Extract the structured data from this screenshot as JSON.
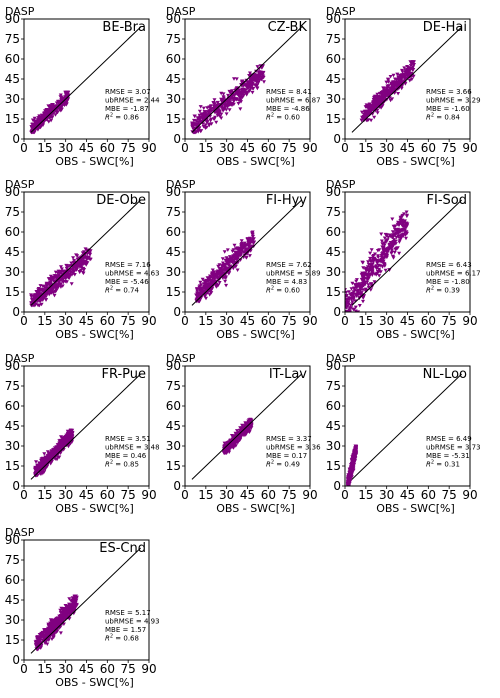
{
  "figure": {
    "marker_color": "#800080",
    "line_color": "#000000"
  },
  "chart_data": [
    {
      "type": "scatter",
      "title": "BE-Bra",
      "ylabel": "DASP",
      "xlabel": "OBS - SWC[%]",
      "xlim": [
        0,
        90
      ],
      "ylim": [
        0,
        90
      ],
      "xticks": [
        "0",
        "15",
        "30",
        "45",
        "60",
        "75",
        "90"
      ],
      "yticks": [
        "0",
        "15",
        "30",
        "45",
        "60",
        "75",
        "90"
      ],
      "reference_line": "1:1",
      "cloud": {
        "x_range": [
          5,
          32
        ],
        "y_range": [
          5,
          35
        ]
      },
      "stats": [
        "RMSE = 3.07",
        "ubRMSE = 2.44",
        "MBE = -1.87",
        "R^2 = 0.86"
      ]
    },
    {
      "type": "scatter",
      "title": "CZ-BK",
      "ylabel": "DASP",
      "xlabel": "OBS - SWC[%]",
      "xlim": [
        0,
        90
      ],
      "ylim": [
        0,
        90
      ],
      "xticks": [
        "0",
        "15",
        "30",
        "45",
        "60",
        "75",
        "90"
      ],
      "yticks": [
        "0",
        "15",
        "30",
        "45",
        "60",
        "75",
        "90"
      ],
      "reference_line": "1:1",
      "cloud": {
        "x_range": [
          5,
          57
        ],
        "y_range": [
          5,
          55
        ]
      },
      "stats": [
        "RMSE = 8.41",
        "ubRMSE = 6.87",
        "MBE = -4.86",
        "R^2 = 0.60"
      ]
    },
    {
      "type": "scatter",
      "title": "DE-Hai",
      "ylabel": "DASP",
      "xlabel": "OBS - SWC[%]",
      "xlim": [
        0,
        90
      ],
      "ylim": [
        0,
        90
      ],
      "xticks": [
        "0",
        "15",
        "30",
        "45",
        "60",
        "75",
        "90"
      ],
      "yticks": [
        "0",
        "15",
        "30",
        "45",
        "60",
        "75",
        "90"
      ],
      "reference_line": "1:1",
      "cloud": {
        "x_range": [
          12,
          50
        ],
        "y_range": [
          14,
          58
        ]
      },
      "stats": [
        "RMSE = 3.66",
        "ubRMSE = 3.29",
        "MBE = -1.60",
        "R^2 = 0.84"
      ]
    },
    {
      "type": "scatter",
      "title": "DE-Obe",
      "ylabel": "DASP",
      "xlabel": "OBS - SWC[%]",
      "xlim": [
        0,
        90
      ],
      "ylim": [
        0,
        90
      ],
      "xticks": [
        "0",
        "15",
        "30",
        "45",
        "60",
        "75",
        "90"
      ],
      "yticks": [
        "0",
        "15",
        "30",
        "45",
        "60",
        "75",
        "90"
      ],
      "reference_line": "1:1",
      "cloud": {
        "x_range": [
          5,
          48
        ],
        "y_range": [
          5,
          48
        ]
      },
      "stats": [
        "RMSE = 7.16",
        "ubRMSE = 4.63",
        "MBE = -5.46",
        "R^2 = 0.74"
      ]
    },
    {
      "type": "scatter",
      "title": "FI-Hyy",
      "ylabel": "DASP",
      "xlabel": "OBS - SWC[%]",
      "xlim": [
        0,
        90
      ],
      "ylim": [
        0,
        90
      ],
      "xticks": [
        "0",
        "15",
        "30",
        "45",
        "60",
        "75",
        "90"
      ],
      "yticks": [
        "0",
        "15",
        "30",
        "45",
        "60",
        "75",
        "90"
      ],
      "reference_line": "1:1",
      "cloud": {
        "x_range": [
          8,
          50
        ],
        "y_range": [
          8,
          60
        ]
      },
      "stats": [
        "RMSE = 7.62",
        "ubRMSE = 5.89",
        "MBE = 4.83",
        "R^2 = 0.60"
      ]
    },
    {
      "type": "scatter",
      "title": "FI-Sod",
      "ylabel": "DASP",
      "xlabel": "OBS - SWC[%]",
      "xlim": [
        0,
        90
      ],
      "ylim": [
        0,
        90
      ],
      "xticks": [
        "0",
        "15",
        "30",
        "45",
        "60",
        "75",
        "90"
      ],
      "yticks": [
        "0",
        "15",
        "30",
        "45",
        "60",
        "75",
        "90"
      ],
      "reference_line": "1:1",
      "cloud": {
        "x_range": [
          0,
          45
        ],
        "y_range": [
          0,
          75
        ]
      },
      "stats": [
        "RMSE = 6.43",
        "ubRMSE = 6.17",
        "MBE = -1.80",
        "R^2 = 0.39"
      ]
    },
    {
      "type": "scatter",
      "title": "FR-Pue",
      "ylabel": "DASP",
      "xlabel": "OBS - SWC[%]",
      "xlim": [
        0,
        90
      ],
      "ylim": [
        0,
        90
      ],
      "xticks": [
        "0",
        "15",
        "30",
        "45",
        "60",
        "75",
        "90"
      ],
      "yticks": [
        "0",
        "15",
        "30",
        "45",
        "60",
        "75",
        "90"
      ],
      "reference_line": "1:1",
      "cloud": {
        "x_range": [
          8,
          35
        ],
        "y_range": [
          8,
          42
        ]
      },
      "stats": [
        "RMSE = 3.51",
        "ubRMSE = 3.48",
        "MBE = 0.46",
        "R^2 = 0.85"
      ]
    },
    {
      "type": "scatter",
      "title": "IT-Lav",
      "ylabel": "DASP",
      "xlabel": "OBS - SWC[%]",
      "xlim": [
        0,
        90
      ],
      "ylim": [
        0,
        90
      ],
      "xticks": [
        "0",
        "15",
        "30",
        "45",
        "60",
        "75",
        "90"
      ],
      "yticks": [
        "0",
        "15",
        "30",
        "45",
        "60",
        "75",
        "90"
      ],
      "reference_line": "1:1",
      "cloud": {
        "x_range": [
          28,
          48
        ],
        "y_range": [
          25,
          50
        ]
      },
      "stats": [
        "RMSE = 3.37",
        "ubRMSE = 3.36",
        "MBE = 0.17",
        "R^2 = 0.49"
      ]
    },
    {
      "type": "scatter",
      "title": "NL-Loo",
      "ylabel": "DASP",
      "xlabel": "OBS - SWC[%]",
      "xlim": [
        0,
        90
      ],
      "ylim": [
        0,
        90
      ],
      "xticks": [
        "0",
        "15",
        "30",
        "45",
        "60",
        "75",
        "90"
      ],
      "yticks": [
        "0",
        "15",
        "30",
        "45",
        "60",
        "75",
        "90"
      ],
      "reference_line": "1:1",
      "cloud": {
        "x_range": [
          2,
          8
        ],
        "y_range": [
          0,
          30
        ]
      },
      "stats": [
        "RMSE = 6.49",
        "ubRMSE = 3.73",
        "MBE = -5.31",
        "R^2 = 0.31"
      ]
    },
    {
      "type": "scatter",
      "title": "ES-Cnd",
      "ylabel": "DASP",
      "xlabel": "OBS - SWC[%]",
      "xlim": [
        0,
        90
      ],
      "ylim": [
        0,
        90
      ],
      "xticks": [
        "0",
        "15",
        "30",
        "45",
        "60",
        "75",
        "90"
      ],
      "yticks": [
        "0",
        "15",
        "30",
        "45",
        "60",
        "75",
        "90"
      ],
      "reference_line": "1:1",
      "cloud": {
        "x_range": [
          8,
          38
        ],
        "y_range": [
          8,
          48
        ]
      },
      "stats": [
        "RMSE = 5.17",
        "ubRMSE = 4.93",
        "MBE = 1.57",
        "R^2 = 0.68"
      ]
    }
  ]
}
